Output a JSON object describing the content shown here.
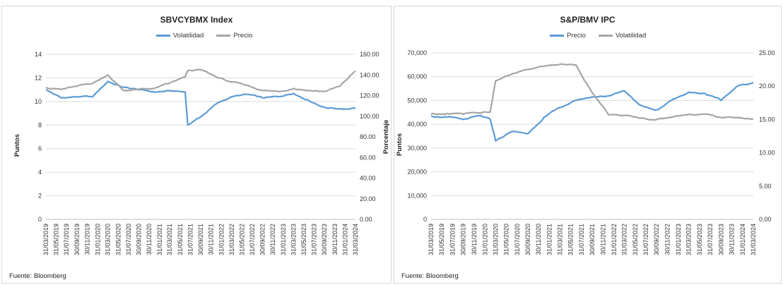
{
  "colors": {
    "blue": "#5b9bd5",
    "gray": "#a5a5a5",
    "grid": "#d9d9d9"
  },
  "x_dates": [
    "31/03/2019",
    "31/05/2019",
    "31/07/2019",
    "30/09/2019",
    "30/11/2019",
    "31/01/2020",
    "31/03/2020",
    "31/05/2020",
    "31/07/2020",
    "30/09/2020",
    "30/11/2020",
    "31/01/2021",
    "31/03/2021",
    "31/05/2021",
    "31/07/2021",
    "30/09/2021",
    "30/11/2021",
    "31/01/2022",
    "31/03/2022",
    "31/05/2022",
    "31/07/2022",
    "30/09/2022",
    "30/11/2022",
    "31/01/2023",
    "31/03/2023",
    "31/05/2023",
    "31/07/2023",
    "30/09/2023",
    "30/11/2023",
    "31/01/2024",
    "31/03/2024"
  ],
  "left": {
    "title": "SBVCYBMX Index",
    "source": "Fuente: Bloomberg",
    "legend": [
      "Volatilidad",
      "Precio"
    ],
    "y_left_label": "Puntos",
    "y_right_label": "Porcentaje",
    "y_left_ticks": [
      "0",
      "2",
      "4",
      "6",
      "8",
      "10",
      "12",
      "14"
    ],
    "y_right_ticks": [
      "0.00",
      "20.00",
      "40.00",
      "60.00",
      "80.00",
      "100.00",
      "120.00",
      "140.00",
      "160.00"
    ]
  },
  "right": {
    "title": "S&P/BMV IPC",
    "source": "Fuente: Bloomberg",
    "legend": [
      "Precio",
      "Volatilidad"
    ],
    "y_left_label": "Puntos",
    "y_right_label": "",
    "y_left_ticks": [
      "0",
      "10,000",
      "20,000",
      "30,000",
      "40,000",
      "50,000",
      "60,000",
      "70,000"
    ],
    "y_right_ticks": [
      "0.00",
      "5.00",
      "10.00",
      "15.00",
      "20.00",
      "25.00"
    ]
  },
  "chart_data": [
    {
      "type": "line",
      "title": "SBVCYBMX Index",
      "xlabel": "",
      "ylabel": "Puntos",
      "y2label": "Porcentaje",
      "ylim": [
        0,
        14
      ],
      "y2lim": [
        0,
        160
      ],
      "x": [
        "31/03/2019",
        "30/06/2019",
        "30/09/2019",
        "31/12/2019",
        "31/03/2020",
        "30/06/2020",
        "30/09/2020",
        "31/12/2020",
        "31/03/2021",
        "30/06/2021",
        "15/07/2021",
        "30/09/2021",
        "31/12/2021",
        "31/03/2022",
        "30/06/2022",
        "30/09/2022",
        "31/12/2022",
        "31/03/2023",
        "30/06/2023",
        "30/09/2023",
        "31/12/2023",
        "31/03/2024"
      ],
      "series": [
        {
          "name": "Volatilidad",
          "axis": "left",
          "color": "#5b9bd5",
          "values": [
            11.0,
            10.3,
            10.4,
            10.4,
            11.7,
            11.2,
            11.0,
            10.8,
            10.9,
            10.8,
            8.0,
            8.7,
            9.8,
            10.4,
            10.6,
            10.3,
            10.4,
            10.7,
            10.1,
            9.5,
            9.4,
            9.4
          ]
        },
        {
          "name": "Precio",
          "axis": "right",
          "color": "#a5a5a5",
          "values": [
            128,
            126,
            129,
            132,
            140,
            125,
            126,
            127,
            132,
            138,
            144,
            145,
            138,
            133,
            130,
            125,
            124,
            127,
            125,
            124,
            129,
            144
          ]
        }
      ]
    },
    {
      "type": "line",
      "title": "S&P/BMV IPC",
      "xlabel": "",
      "ylabel": "Puntos",
      "ylim": [
        0,
        70000
      ],
      "y2lim": [
        0,
        25
      ],
      "x": [
        "31/03/2019",
        "30/06/2019",
        "30/09/2019",
        "31/12/2019",
        "29/02/2020",
        "31/03/2020",
        "30/06/2020",
        "30/09/2020",
        "31/12/2020",
        "31/03/2021",
        "30/06/2021",
        "30/09/2021",
        "31/12/2021",
        "31/03/2022",
        "30/06/2022",
        "30/09/2022",
        "31/12/2022",
        "31/03/2023",
        "30/06/2023",
        "30/09/2023",
        "31/12/2023",
        "31/03/2024"
      ],
      "series": [
        {
          "name": "Precio",
          "axis": "left",
          "color": "#5b9bd5",
          "values": [
            43500,
            43000,
            42000,
            43500,
            42000,
            33000,
            37000,
            36000,
            43000,
            47000,
            50000,
            51500,
            52000,
            54000,
            48000,
            46000,
            50500,
            53500,
            53000,
            50000,
            56000,
            57500
          ]
        },
        {
          "name": "Volatilidad",
          "axis": "right",
          "color": "#a5a5a5",
          "values": [
            15.8,
            15.9,
            15.8,
            16.0,
            16.1,
            20.8,
            21.8,
            22.5,
            23.0,
            23.3,
            23.2,
            19.0,
            15.7,
            15.6,
            15.2,
            15.0,
            15.4,
            15.8,
            15.8,
            15.3,
            15.3,
            15.1
          ]
        }
      ]
    }
  ]
}
